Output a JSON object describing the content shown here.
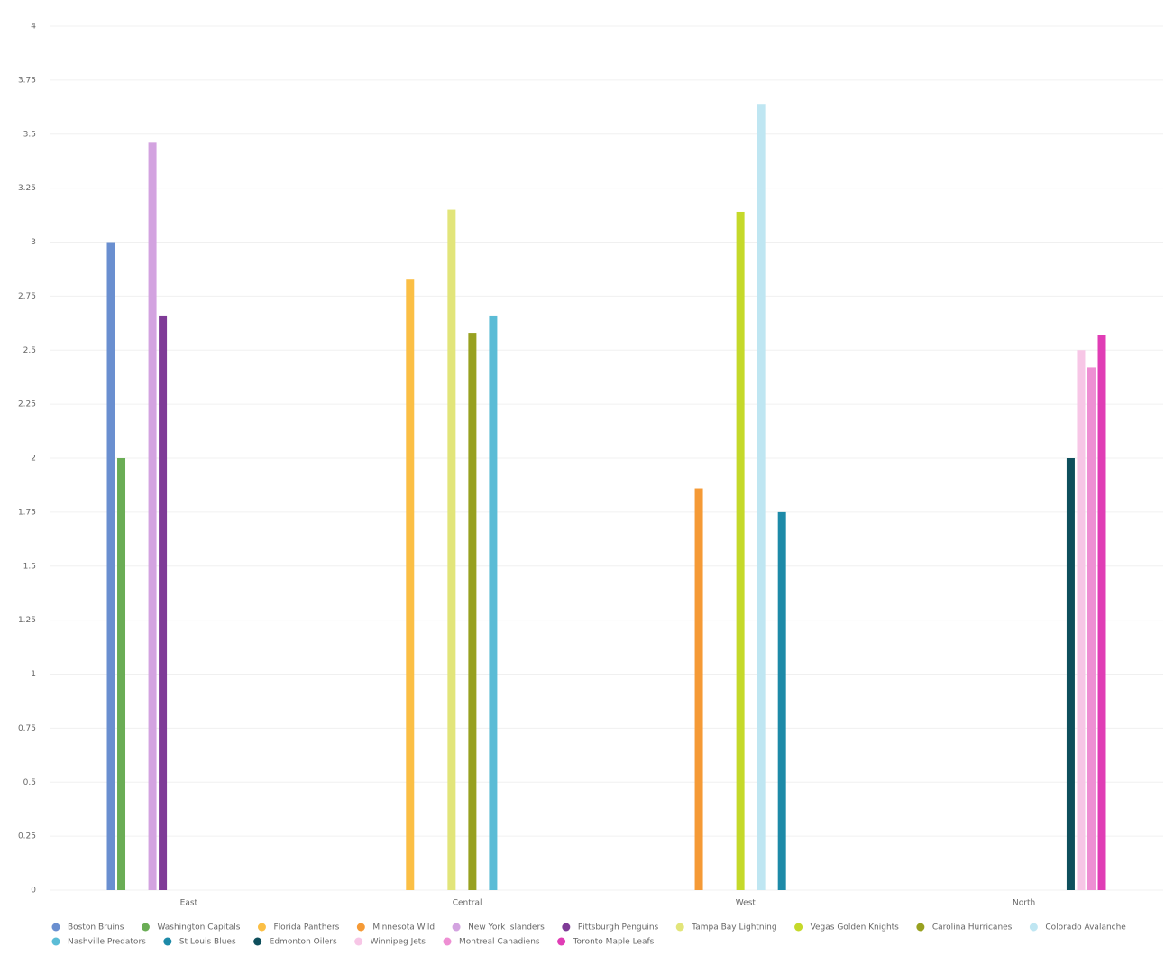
{
  "chart_data": {
    "type": "bar",
    "categories": [
      "East",
      "Central",
      "West",
      "North"
    ],
    "ylim": [
      0,
      4
    ],
    "yticks": [
      0,
      0.25,
      0.5,
      0.75,
      1,
      1.25,
      1.5,
      1.75,
      2,
      2.25,
      2.5,
      2.75,
      3,
      3.25,
      3.5,
      3.75,
      4
    ],
    "grid": true,
    "legend": "bottom",
    "series": [
      {
        "name": "Boston Bruins",
        "color": "#6a8fd0",
        "values": [
          3,
          null,
          null,
          null
        ]
      },
      {
        "name": "Washington Capitals",
        "color": "#6aad55",
        "values": [
          2,
          null,
          null,
          null
        ]
      },
      {
        "name": "Florida Panthers",
        "color": "#fbbf45",
        "values": [
          null,
          2.83,
          null,
          null
        ]
      },
      {
        "name": "Minnesota Wild",
        "color": "#f59a36",
        "values": [
          null,
          null,
          1.86,
          null
        ]
      },
      {
        "name": "New York Islanders",
        "color": "#d3a3e0",
        "values": [
          3.46,
          null,
          null,
          null
        ]
      },
      {
        "name": "Pittsburgh Penguins",
        "color": "#7f3b97",
        "values": [
          2.66,
          null,
          null,
          null
        ]
      },
      {
        "name": "Tampa Bay Lightning",
        "color": "#e2e57a",
        "values": [
          null,
          3.15,
          null,
          null
        ]
      },
      {
        "name": "Vegas Golden Knights",
        "color": "#c5d92a",
        "values": [
          null,
          null,
          3.14,
          null
        ]
      },
      {
        "name": "Carolina Hurricanes",
        "color": "#98a120",
        "values": [
          null,
          2.58,
          null,
          null
        ]
      },
      {
        "name": "Colorado Avalanche",
        "color": "#bfe6f2",
        "values": [
          null,
          null,
          3.64,
          null
        ]
      },
      {
        "name": "Nashville Predators",
        "color": "#5bbcd6",
        "values": [
          null,
          2.66,
          null,
          null
        ]
      },
      {
        "name": "St Louis Blues",
        "color": "#1d8aa8",
        "values": [
          null,
          null,
          1.75,
          null
        ]
      },
      {
        "name": "Edmonton Oilers",
        "color": "#0e4f5c",
        "values": [
          null,
          null,
          null,
          2
        ]
      },
      {
        "name": "Winnipeg Jets",
        "color": "#f7c6e6",
        "values": [
          null,
          null,
          null,
          2.5
        ]
      },
      {
        "name": "Montreal Canadiens",
        "color": "#ee8fd3",
        "values": [
          null,
          null,
          null,
          2.42
        ]
      },
      {
        "name": "Toronto Maple Leafs",
        "color": "#e03db5",
        "values": [
          null,
          null,
          null,
          2.57
        ]
      }
    ]
  }
}
